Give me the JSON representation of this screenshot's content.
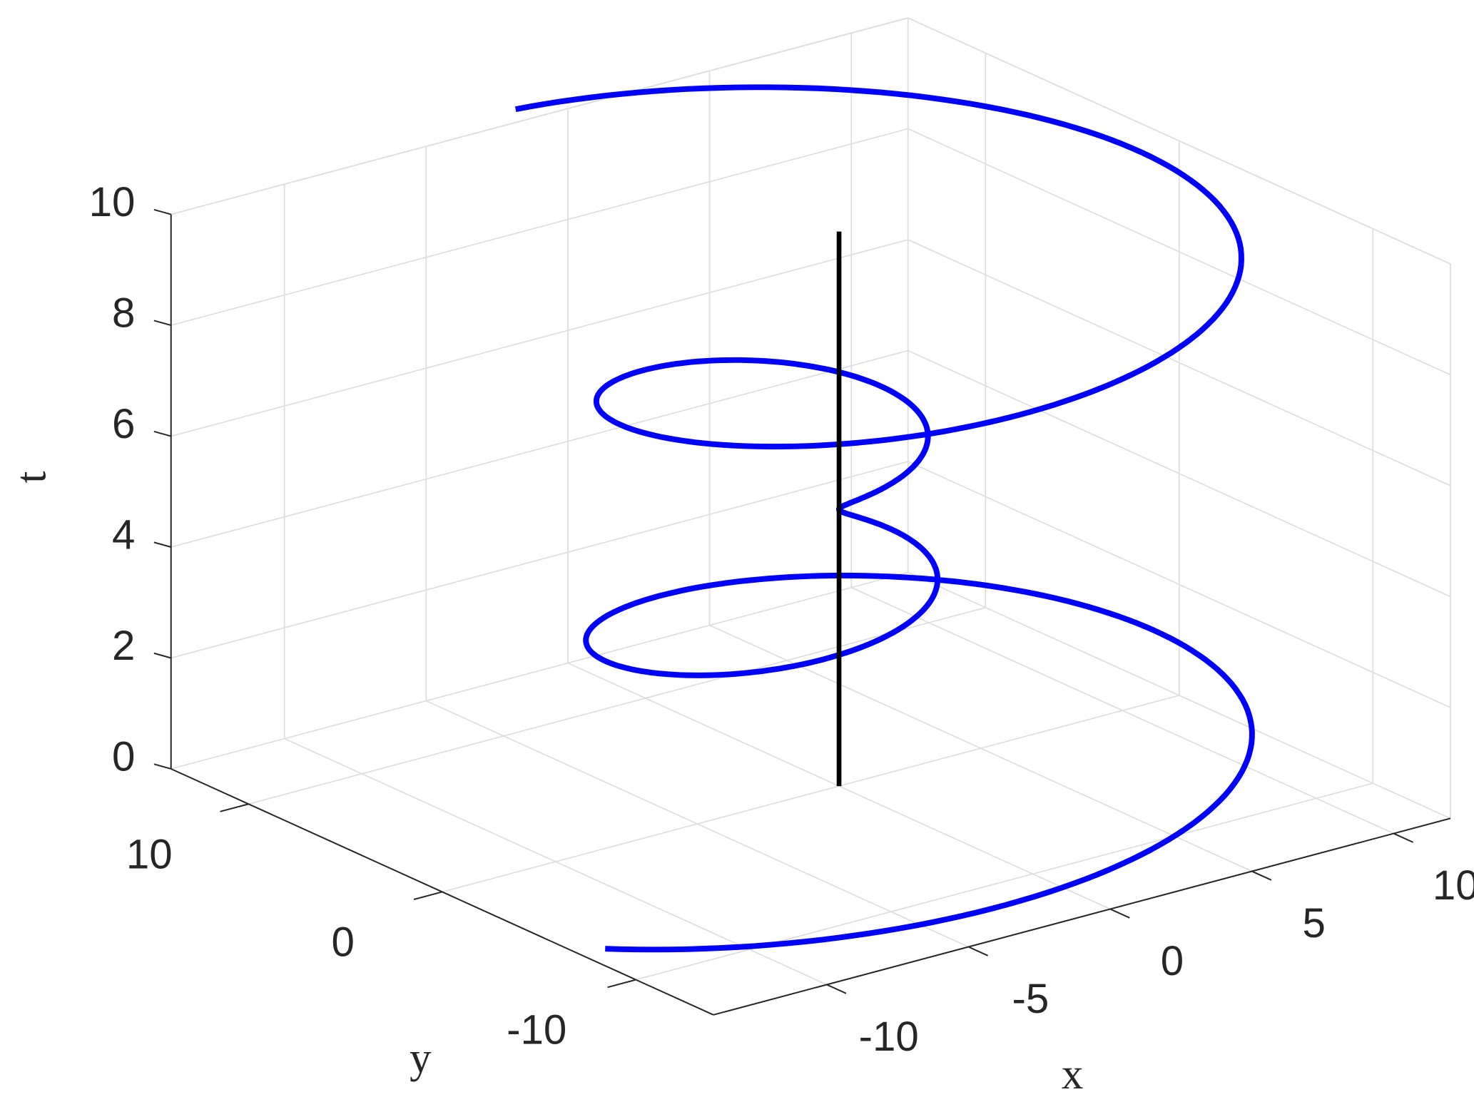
{
  "chart_data": {
    "type": "line3d",
    "title": "",
    "xlabel": "x",
    "ylabel": "y",
    "zlabel": "t",
    "xlim": [
      -14,
      12
    ],
    "ylim": [
      -14,
      14
    ],
    "zlim": [
      0,
      10
    ],
    "xticks": [
      "-10",
      "-5",
      "0",
      "5",
      "10"
    ],
    "yticks": [
      "-10",
      "0",
      "10"
    ],
    "zticks": [
      "0",
      "2",
      "4",
      "6",
      "8",
      "10"
    ],
    "grid": true,
    "series": [
      {
        "kind": "parametric",
        "color": "#0000ff",
        "t_range": [
          0,
          10
        ],
        "x": "3(t-5)cos(2t+0.5)",
        "y": "3(t-5)sin(2t+0.5)",
        "z": "t",
        "amplitude": 3,
        "center": 5,
        "omega": 2,
        "phase": 0.5
      },
      {
        "kind": "segment",
        "color": "#000000",
        "x": [
          0,
          0
        ],
        "y": [
          0,
          0
        ],
        "z": [
          0,
          10
        ]
      }
    ]
  }
}
